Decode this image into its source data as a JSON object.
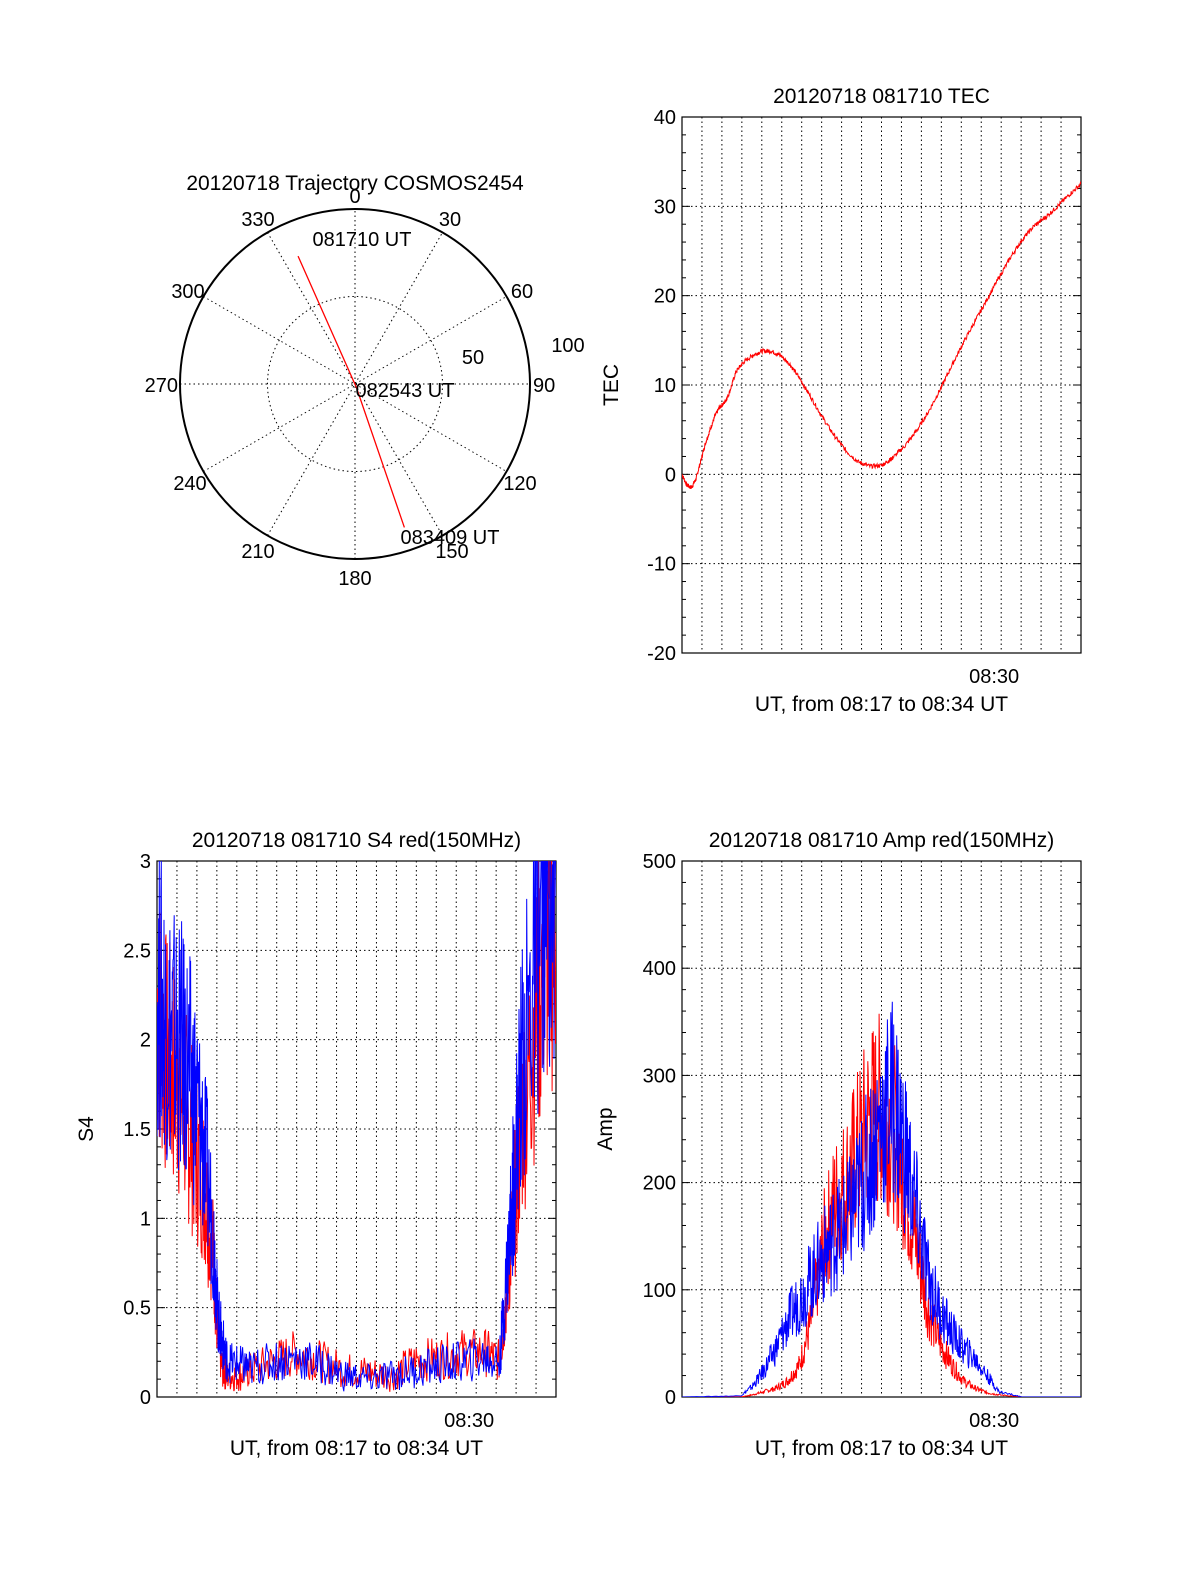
{
  "chart_data": [
    {
      "type": "polar",
      "title": "20120718 Trajectory COSMOS2454",
      "azimuth_labels": [
        "0",
        "30",
        "60",
        "90",
        "120",
        "150",
        "180",
        "210",
        "240",
        "270",
        "300",
        "330"
      ],
      "radial_labels": [
        "50",
        "100"
      ],
      "grid": true,
      "trajectory": {
        "color": "#ff0000",
        "points": [
          {
            "label": "081710 UT",
            "azimuth": 336,
            "elevation": 18
          },
          {
            "label": "082543 UT",
            "azimuth": 158,
            "elevation": 88
          },
          {
            "label": "083409 UT",
            "azimuth": 161,
            "elevation": 12
          }
        ]
      }
    },
    {
      "type": "line",
      "title": "20120718 081710 TEC",
      "xlabel": "UT, from 08:17 to 08:34 UT",
      "ylabel": "TEC",
      "x_tick_labels": [
        {
          "label": "08:30",
          "at": 13.3
        }
      ],
      "xlim": [
        0,
        17.0
      ],
      "ylim": [
        -20,
        40
      ],
      "y_ticks": [
        -20,
        -10,
        0,
        10,
        20,
        30,
        40
      ],
      "grid": true,
      "series": [
        {
          "color": "#ff0000",
          "x": [
            0,
            0.2,
            0.4,
            0.6,
            0.8,
            1.0,
            1.2,
            1.4,
            1.6,
            1.8,
            2.0,
            2.3,
            2.6,
            3.0,
            3.4,
            3.8,
            4.2,
            4.6,
            5.0,
            5.5,
            6.0,
            6.5,
            7.0,
            7.5,
            8.0,
            8.5,
            8.8,
            9.0,
            9.5,
            10.0,
            10.5,
            11.0,
            11.5,
            12.0,
            12.5,
            13.0,
            13.5,
            14.0,
            14.5,
            15.0,
            15.5,
            16.0,
            16.5,
            17.0
          ],
          "y": [
            0,
            -1.2,
            -1.5,
            -0.5,
            1.5,
            3.5,
            5,
            6.5,
            7.5,
            8,
            9,
            11.5,
            12.5,
            13.3,
            13.8,
            13.8,
            13.3,
            12.3,
            10.8,
            8.6,
            6.3,
            4.3,
            2.6,
            1.4,
            0.9,
            1.0,
            1.5,
            1.9,
            3.2,
            4.9,
            7.0,
            9.5,
            12.2,
            14.8,
            17.2,
            19.6,
            22,
            24.3,
            26.3,
            27.8,
            28.8,
            30,
            31.3,
            32.5
          ]
        }
      ]
    },
    {
      "type": "line",
      "title": "20120718 081710 S4 red(150MHz)",
      "xlabel": "UT, from 08:17 to 08:34 UT",
      "ylabel": "S4",
      "x_tick_labels": [
        {
          "label": "08:30",
          "at": 13.3
        }
      ],
      "xlim": [
        0,
        17.0
      ],
      "ylim": [
        0,
        3
      ],
      "y_ticks": [
        0,
        0.5,
        1,
        1.5,
        2,
        2.5,
        3
      ],
      "y_tick_labels": [
        "0",
        "0.5",
        "1",
        "1.5",
        "2",
        "2.5",
        "3"
      ],
      "grid": true,
      "series": [
        {
          "color": "#ff0000",
          "x": [
            0,
            0.4,
            0.8,
            1.2,
            1.6,
            2.0,
            2.4,
            2.6,
            2.8,
            3.0,
            3.5,
            4.0,
            5.0,
            6.0,
            7.0,
            8.0,
            9.0,
            10.0,
            11.0,
            12.0,
            13.0,
            14.0,
            14.6,
            14.9,
            15.2,
            15.5,
            16.0,
            16.5,
            17.0
          ],
          "y": [
            2.2,
            1.9,
            1.8,
            1.6,
            1.4,
            1.2,
            0.8,
            0.3,
            0.15,
            0.12,
            0.12,
            0.15,
            0.2,
            0.25,
            0.2,
            0.15,
            0.14,
            0.12,
            0.2,
            0.22,
            0.25,
            0.25,
            0.2,
            0.6,
            1.0,
            1.5,
            2.0,
            2.5,
            2.6
          ]
        },
        {
          "color": "#0000ff",
          "x": [
            0,
            0.4,
            0.8,
            1.2,
            1.6,
            2.0,
            2.4,
            2.6,
            2.8,
            3.0,
            3.5,
            4.0,
            5.0,
            6.0,
            7.0,
            8.0,
            9.0,
            10.0,
            11.0,
            12.0,
            13.0,
            14.0,
            14.6,
            14.9,
            15.2,
            15.5,
            16.0,
            16.5,
            17.0
          ],
          "y": [
            2.3,
            2.1,
            2.0,
            1.9,
            1.7,
            1.4,
            0.9,
            0.45,
            0.3,
            0.2,
            0.18,
            0.16,
            0.2,
            0.22,
            0.18,
            0.12,
            0.1,
            0.12,
            0.15,
            0.18,
            0.2,
            0.22,
            0.2,
            0.7,
            1.2,
            1.8,
            2.3,
            2.7,
            2.8
          ]
        }
      ]
    },
    {
      "type": "line",
      "title": "20120718 081710 Amp red(150MHz)",
      "xlabel": "UT, from 08:17 to 08:34 UT",
      "ylabel": "Amp",
      "x_tick_labels": [
        {
          "label": "08:30",
          "at": 13.3
        }
      ],
      "xlim": [
        0,
        17.0
      ],
      "ylim": [
        0,
        500
      ],
      "y_ticks": [
        0,
        100,
        200,
        300,
        400,
        500
      ],
      "grid": true,
      "series": [
        {
          "color": "#ff0000",
          "x": [
            0,
            2.5,
            3.0,
            3.5,
            4.0,
            4.5,
            5.0,
            5.5,
            6.0,
            6.5,
            7.0,
            7.5,
            8.0,
            8.5,
            9.0,
            9.5,
            10.0,
            10.5,
            11.0,
            11.5,
            12.0,
            12.5,
            13.0,
            13.5,
            14.5,
            17.0
          ],
          "y": [
            0,
            0,
            2,
            5,
            8,
            15,
            30,
            70,
            140,
            180,
            200,
            230,
            260,
            270,
            250,
            200,
            140,
            80,
            50,
            30,
            15,
            8,
            4,
            2,
            0,
            0
          ]
        },
        {
          "color": "#0000ff",
          "x": [
            0,
            2.5,
            3.0,
            3.5,
            4.0,
            4.5,
            5.0,
            5.5,
            6.0,
            6.5,
            7.0,
            7.5,
            8.0,
            8.5,
            9.0,
            9.5,
            10.0,
            10.5,
            11.0,
            11.5,
            12.0,
            12.5,
            13.0,
            13.5,
            14.5,
            17.0
          ],
          "y": [
            0,
            1,
            10,
            25,
            45,
            70,
            90,
            110,
            130,
            150,
            160,
            190,
            220,
            260,
            280,
            230,
            170,
            110,
            80,
            60,
            45,
            35,
            20,
            5,
            0,
            0
          ]
        }
      ]
    }
  ]
}
